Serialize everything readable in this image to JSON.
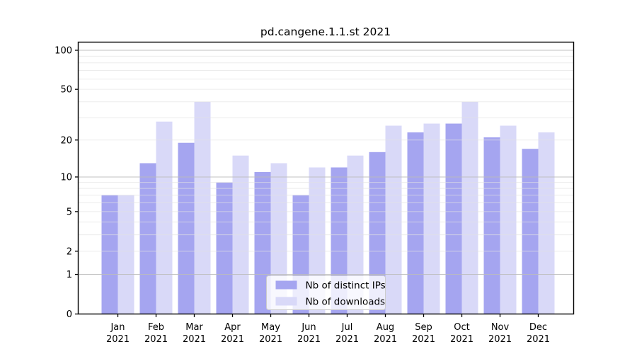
{
  "figure": {
    "title": "pd.cangene.1.1.st 2021"
  },
  "chart_data": {
    "type": "bar",
    "title": "pd.cangene.1.1.st 2021",
    "categories": [
      "Jan",
      "Feb",
      "Mar",
      "Apr",
      "May",
      "Jun",
      "Jul",
      "Aug",
      "Sep",
      "Oct",
      "Nov",
      "Dec"
    ],
    "year_label": "2021",
    "series": [
      {
        "name": "Nb of distinct IPs",
        "color": "#a5a5f0",
        "values": [
          7,
          13,
          19,
          9,
          11,
          7,
          12,
          16,
          23,
          27,
          21,
          17
        ]
      },
      {
        "name": "Nb of downloads",
        "color": "#d9d9f8",
        "values": [
          7,
          28,
          40,
          15,
          13,
          12,
          15,
          26,
          27,
          40,
          26,
          23
        ]
      }
    ],
    "yscale": "log1p",
    "ylim": [
      0,
      115
    ],
    "yticks": [
      0,
      1,
      2,
      5,
      10,
      20,
      50,
      100
    ],
    "gridlines": {
      "major": [
        1,
        10,
        100
      ],
      "minor": [
        2,
        3,
        4,
        5,
        6,
        7,
        8,
        9,
        20,
        30,
        40,
        50,
        60,
        70,
        80,
        90
      ]
    },
    "legend": {
      "position": "lower center inside",
      "entries": [
        "Nb of distinct IPs",
        "Nb of downloads"
      ]
    },
    "colors": {
      "axis": "#000000",
      "major_grid": "#bbbbbb",
      "minor_grid": "#e2e2e2",
      "legend_border": "#cccccc",
      "legend_background": "rgba(255,255,255,0.8)"
    }
  }
}
